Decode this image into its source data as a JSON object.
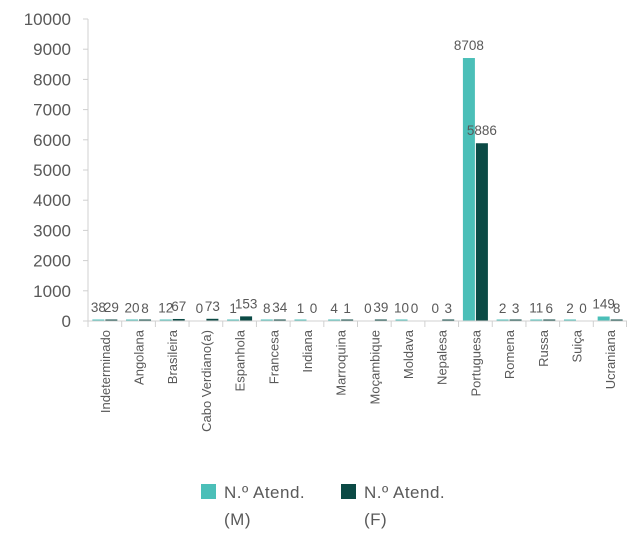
{
  "chart_data": {
    "type": "bar",
    "categories": [
      "Indeterminado",
      "Angolana",
      "Brasileira",
      "Cabo Verdiano(a)",
      "Espanhola",
      "Francesa",
      "Indiana",
      "Marroquina",
      "Moçambique",
      "Moldava",
      "Nepalesa",
      "Portuguesa",
      "Romena",
      "Russa",
      "Suiça",
      "Ucraniana"
    ],
    "series": [
      {
        "name": "N.º Atend. (M)",
        "color": "#4bbfb8",
        "values": [
          38,
          20,
          12,
          0,
          1,
          8,
          1,
          4,
          0,
          10,
          0,
          8708,
          2,
          11,
          2,
          149
        ],
        "labels": [
          "38",
          "20",
          "12",
          "0",
          "1",
          "8",
          "1",
          "4",
          "0",
          "10",
          "0",
          "8708",
          "2",
          "11",
          "2",
          "149"
        ]
      },
      {
        "name": "N.º Atend. (F)",
        "color": "#0b4a45",
        "values": [
          29,
          8,
          67,
          73,
          153,
          34,
          0,
          1,
          39,
          0,
          3,
          5886,
          3,
          6,
          0,
          8
        ],
        "labels": [
          "29",
          "8",
          "67",
          "73",
          "153",
          "34",
          "0",
          "1",
          "39",
          "0",
          "3",
          "5886",
          "3",
          "6",
          "0",
          "8"
        ]
      }
    ],
    "ylim": [
      0,
      10000
    ],
    "yticks": [
      0,
      1000,
      2000,
      3000,
      4000,
      5000,
      6000,
      7000,
      8000,
      9000,
      10000
    ],
    "ytick_labels": [
      "0",
      "1000",
      "2000",
      "3000",
      "4000",
      "5000",
      "6000",
      "7000",
      "8000",
      "9000",
      "10000"
    ],
    "grid": false,
    "legend_position": "bottom"
  },
  "legend": {
    "m_line1": "N.º Atend.",
    "m_line2": "(M)",
    "f_line1": "N.º Atend.",
    "f_line2": "(F)"
  }
}
